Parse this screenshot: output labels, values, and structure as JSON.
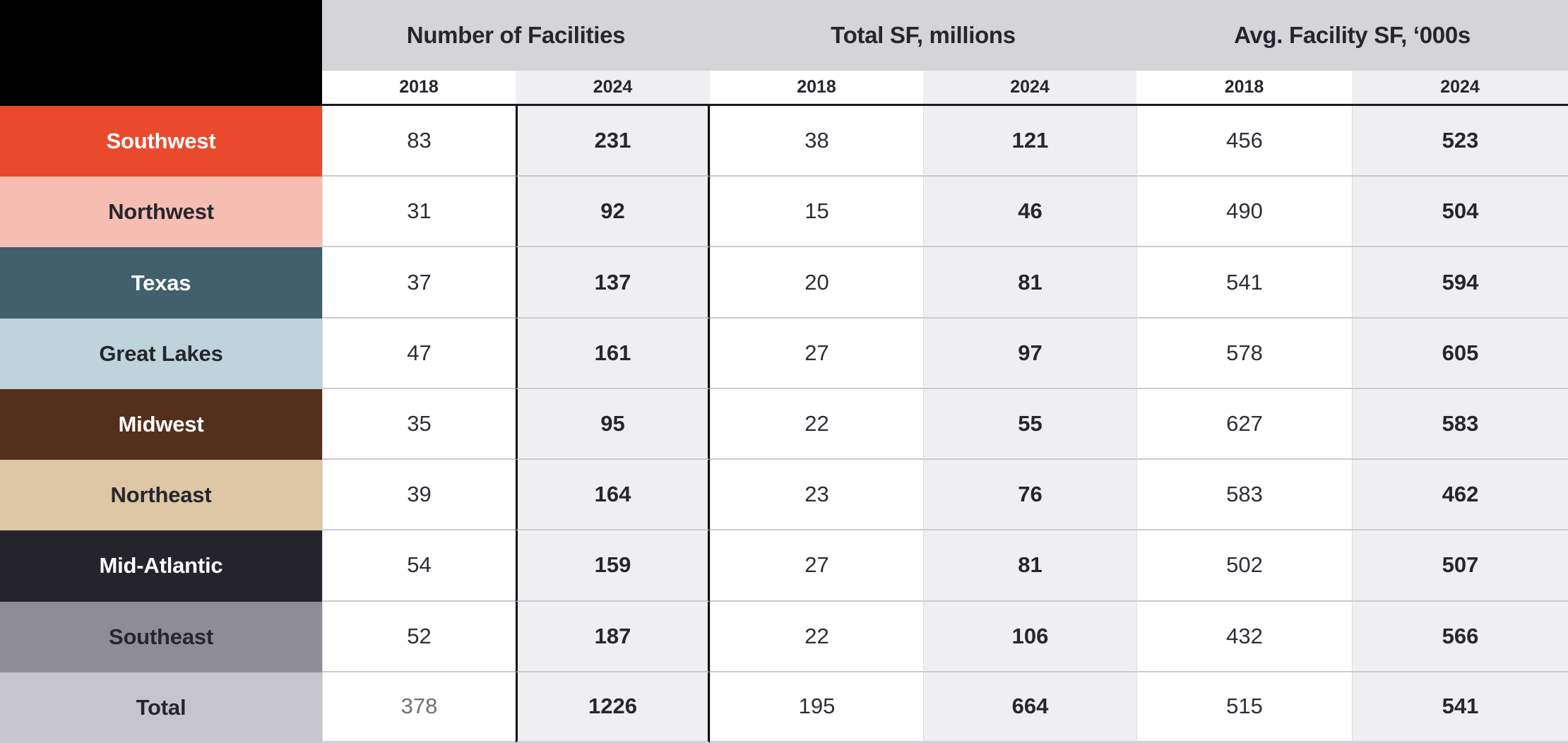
{
  "page": {
    "background": "#ffffff"
  },
  "colors": {
    "header_band": "#d5d4d6",
    "col_2018_bg": "#ffffff",
    "col_2024_bg": "#efeef0",
    "dark_text": "#26262e",
    "rule_dark": "#1b1b20",
    "row_divider": "#cbcbcf",
    "corner_bg": "#000000",
    "highlight_column_border": "#0d0d10"
  },
  "table": {
    "groups": [
      {
        "label": "Number of Facilities"
      },
      {
        "label": "Total SF, millions"
      },
      {
        "label": "Avg. Facility SF, ‘000s"
      }
    ],
    "year_headers": [
      "2018",
      "2024",
      "2018",
      "2024",
      "2018",
      "2024"
    ],
    "rows": [
      {
        "region": "Southwest",
        "color": "#e94a2d",
        "text": "#ffffff",
        "values": [
          "83",
          "231",
          "38",
          "121",
          "456",
          "523"
        ]
      },
      {
        "region": "Northwest",
        "color": "#f6bdb2",
        "text": "#26262e",
        "values": [
          "31",
          "92",
          "15",
          "46",
          "490",
          "504"
        ]
      },
      {
        "region": "Texas",
        "color": "#40606b",
        "text": "#ffffff",
        "values": [
          "37",
          "137",
          "20",
          "81",
          "541",
          "594"
        ]
      },
      {
        "region": "Great Lakes",
        "color": "#bed3da",
        "text": "#26262e",
        "values": [
          "47",
          "161",
          "27",
          "97",
          "578",
          "605"
        ]
      },
      {
        "region": "Midwest",
        "color": "#532f1c",
        "text": "#ffffff",
        "values": [
          "35",
          "95",
          "22",
          "55",
          "627",
          "583"
        ]
      },
      {
        "region": "Northeast",
        "color": "#ddc7a4",
        "text": "#26262e",
        "values": [
          "39",
          "164",
          "23",
          "76",
          "583",
          "462"
        ]
      },
      {
        "region": "Mid-Atlantic",
        "color": "#25242c",
        "text": "#ffffff",
        "values": [
          "54",
          "159",
          "27",
          "81",
          "502",
          "507"
        ]
      },
      {
        "region": "Southeast",
        "color": "#8e8d96",
        "text": "#26262e",
        "values": [
          "52",
          "187",
          "22",
          "106",
          "432",
          "566"
        ]
      },
      {
        "region": "Total",
        "color": "#c6c5cc",
        "text": "#26262e",
        "values": [
          "378",
          "1226",
          "195",
          "664",
          "515",
          "541"
        ],
        "muted_first": true
      }
    ]
  },
  "chart_data": {
    "type": "table",
    "title": "",
    "column_groups": [
      "Number of Facilities",
      "Total SF, millions",
      "Avg. Facility SF, ‘000s"
    ],
    "columns": [
      "Number of Facilities 2018",
      "Number of Facilities 2024",
      "Total SF millions 2018",
      "Total SF millions 2024",
      "Avg. Facility SF ‘000s 2018",
      "Avg. Facility SF ‘000s 2024"
    ],
    "row_labels": [
      "Southwest",
      "Northwest",
      "Texas",
      "Great Lakes",
      "Midwest",
      "Northeast",
      "Mid-Atlantic",
      "Southeast",
      "Total"
    ],
    "values": [
      [
        83,
        231,
        38,
        121,
        456,
        523
      ],
      [
        31,
        92,
        15,
        46,
        490,
        504
      ],
      [
        37,
        137,
        20,
        81,
        541,
        594
      ],
      [
        47,
        161,
        27,
        97,
        578,
        605
      ],
      [
        35,
        95,
        22,
        55,
        627,
        583
      ],
      [
        39,
        164,
        23,
        76,
        583,
        462
      ],
      [
        54,
        159,
        27,
        81,
        502,
        507
      ],
      [
        52,
        187,
        22,
        106,
        432,
        566
      ],
      [
        378,
        1226,
        195,
        664,
        515,
        541
      ]
    ],
    "notes": "2018 columns regular weight on white; 2024 columns bold on light gray; Number of Facilities 2024 column outlined in black; region label cells color-coded"
  }
}
